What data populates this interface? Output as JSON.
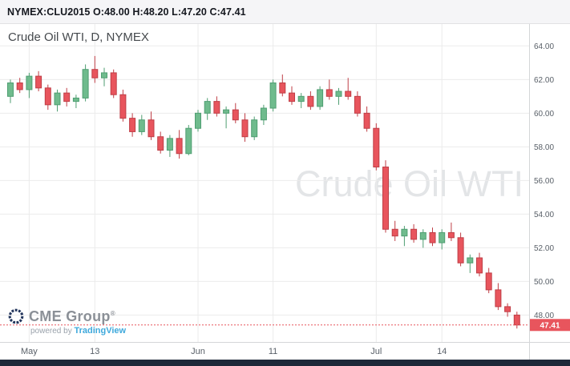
{
  "header": {
    "quote_line": "NYMEX:CLU2015 O:48.00 H:48.20 L:47.20 C:47.41"
  },
  "chart": {
    "title": "Crude Oil WTI, D, NYMEX",
    "watermark": "Crude Oil WTI",
    "last_price_label": "47.41"
  },
  "footer": {
    "logo_text": "CME Group",
    "reg_mark": "®",
    "powered_by": "powered by",
    "tv_name": "TradingView"
  },
  "colors": {
    "up_fill": "#6fbb8d",
    "up_border": "#4f9e72",
    "down_fill": "#e8555d",
    "down_border": "#bf3e46",
    "grid": "#ebebeb",
    "axis_border": "#d4d6d8",
    "axis_text": "#596068",
    "price_line": "#e8555d",
    "badge_bg": "#e8555d",
    "badge_text": "#ffffff"
  },
  "chart_data": {
    "type": "candlestick",
    "title": "Crude Oil WTI, D, NYMEX",
    "symbol": "NYMEX:CLU2015",
    "interval": "D",
    "exchange": "NYMEX",
    "ohlc_display": {
      "O": 48.0,
      "H": 48.2,
      "L": 47.2,
      "C": 47.41
    },
    "last_price": 47.41,
    "ylim": [
      46.4,
      65.3
    ],
    "y_ticks": [
      64,
      62,
      60,
      58,
      56,
      54,
      52,
      50,
      48
    ],
    "y_tick_labels": [
      "64.00",
      "62.00",
      "60.00",
      "58.00",
      "56.00",
      "54.00",
      "52.00",
      "50.00",
      "48.00"
    ],
    "x_ticks": [
      {
        "index": 2,
        "label": "May"
      },
      {
        "index": 9,
        "label": "13"
      },
      {
        "index": 20,
        "label": "Jun"
      },
      {
        "index": 28,
        "label": "11"
      },
      {
        "index": 39,
        "label": "Jul"
      },
      {
        "index": 46,
        "label": "14"
      }
    ],
    "candles_format": [
      "open",
      "high",
      "low",
      "close"
    ],
    "candles": [
      [
        61.0,
        62.0,
        60.6,
        61.8
      ],
      [
        61.8,
        62.1,
        61.2,
        61.4
      ],
      [
        61.4,
        62.4,
        60.9,
        62.2
      ],
      [
        62.2,
        62.5,
        61.3,
        61.5
      ],
      [
        61.5,
        61.7,
        60.2,
        60.5
      ],
      [
        60.5,
        61.4,
        60.1,
        61.2
      ],
      [
        61.2,
        61.5,
        60.4,
        60.7
      ],
      [
        60.7,
        61.1,
        60.3,
        60.9
      ],
      [
        60.9,
        62.9,
        60.7,
        62.6
      ],
      [
        62.6,
        63.4,
        61.8,
        62.1
      ],
      [
        62.1,
        62.7,
        61.6,
        62.4
      ],
      [
        62.4,
        62.6,
        60.9,
        61.1
      ],
      [
        61.1,
        61.4,
        59.5,
        59.7
      ],
      [
        59.7,
        60.0,
        58.6,
        58.9
      ],
      [
        58.9,
        59.9,
        58.7,
        59.6
      ],
      [
        59.6,
        60.1,
        58.4,
        58.6
      ],
      [
        58.6,
        58.9,
        57.6,
        57.8
      ],
      [
        57.8,
        58.7,
        57.4,
        58.5
      ],
      [
        58.5,
        59.0,
        57.3,
        57.6
      ],
      [
        57.6,
        59.3,
        57.5,
        59.1
      ],
      [
        59.1,
        60.2,
        58.9,
        60.0
      ],
      [
        60.0,
        60.9,
        59.6,
        60.7
      ],
      [
        60.7,
        61.0,
        59.8,
        60.0
      ],
      [
        60.0,
        60.4,
        59.1,
        60.2
      ],
      [
        60.2,
        60.6,
        59.4,
        59.6
      ],
      [
        59.6,
        60.0,
        58.3,
        58.6
      ],
      [
        58.6,
        59.8,
        58.4,
        59.6
      ],
      [
        59.6,
        60.5,
        59.3,
        60.3
      ],
      [
        60.3,
        62.0,
        60.1,
        61.8
      ],
      [
        61.8,
        62.3,
        61.0,
        61.2
      ],
      [
        61.2,
        61.6,
        60.5,
        60.7
      ],
      [
        60.7,
        61.2,
        60.3,
        61.0
      ],
      [
        61.0,
        61.3,
        60.2,
        60.4
      ],
      [
        60.4,
        61.6,
        60.2,
        61.4
      ],
      [
        61.4,
        62.0,
        60.8,
        61.0
      ],
      [
        61.0,
        61.5,
        60.5,
        61.3
      ],
      [
        61.3,
        62.1,
        60.8,
        61.0
      ],
      [
        61.0,
        61.3,
        59.8,
        60.0
      ],
      [
        60.0,
        60.4,
        58.9,
        59.1
      ],
      [
        59.1,
        59.4,
        56.6,
        56.8
      ],
      [
        56.8,
        57.2,
        52.9,
        53.1
      ],
      [
        53.1,
        53.6,
        52.4,
        52.7
      ],
      [
        52.7,
        53.3,
        52.1,
        53.1
      ],
      [
        53.1,
        53.4,
        52.3,
        52.5
      ],
      [
        52.5,
        53.1,
        52.0,
        52.9
      ],
      [
        52.9,
        53.2,
        52.1,
        52.3
      ],
      [
        52.3,
        53.1,
        51.9,
        52.9
      ],
      [
        52.9,
        53.5,
        52.4,
        52.6
      ],
      [
        52.6,
        52.9,
        50.9,
        51.1
      ],
      [
        51.1,
        51.6,
        50.5,
        51.4
      ],
      [
        51.4,
        51.7,
        50.3,
        50.5
      ],
      [
        50.5,
        50.8,
        49.3,
        49.5
      ],
      [
        49.5,
        49.9,
        48.3,
        48.5
      ],
      [
        48.5,
        48.7,
        47.9,
        48.2
      ],
      [
        48.0,
        48.2,
        47.2,
        47.41
      ]
    ]
  }
}
